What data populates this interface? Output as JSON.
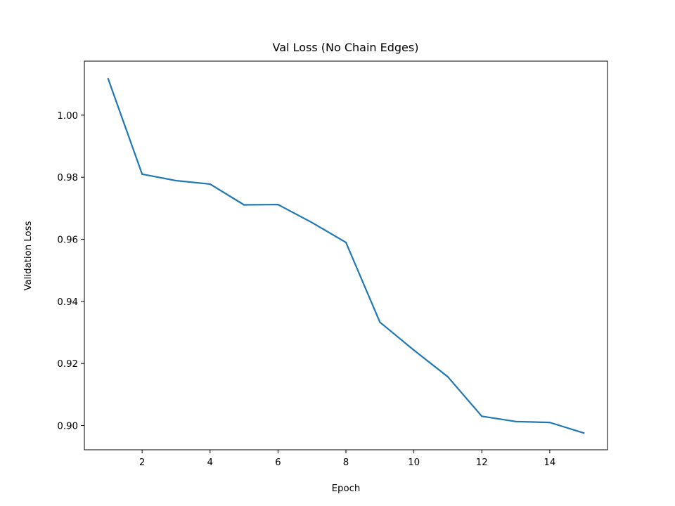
{
  "chart_data": {
    "type": "line",
    "title": "Val Loss (No Chain Edges)",
    "xlabel": "Epoch",
    "ylabel": "Validation Loss",
    "xlim": [
      0.3,
      15.7
    ],
    "ylim": [
      0.8922,
      1.0174
    ],
    "xticks": [
      2,
      4,
      6,
      8,
      10,
      12,
      14
    ],
    "yticks": [
      0.9,
      0.92,
      0.94,
      0.96,
      0.98,
      1.0
    ],
    "xtick_labels": [
      "2",
      "4",
      "6",
      "8",
      "10",
      "12",
      "14"
    ],
    "ytick_labels": [
      "0.90",
      "0.92",
      "0.94",
      "0.96",
      "0.98",
      "1.00"
    ],
    "grid": false,
    "legend": "none",
    "series": [
      {
        "color": "#1f77b4",
        "x": [
          1,
          2,
          3,
          4,
          5,
          6,
          7,
          8,
          9,
          10,
          11,
          12,
          13,
          14,
          15
        ],
        "values": [
          1.0117,
          0.981,
          0.9789,
          0.9778,
          0.9711,
          0.9712,
          0.9654,
          0.959,
          0.9333,
          0.9243,
          0.9157,
          0.903,
          0.9013,
          0.901,
          0.8976
        ]
      }
    ]
  }
}
